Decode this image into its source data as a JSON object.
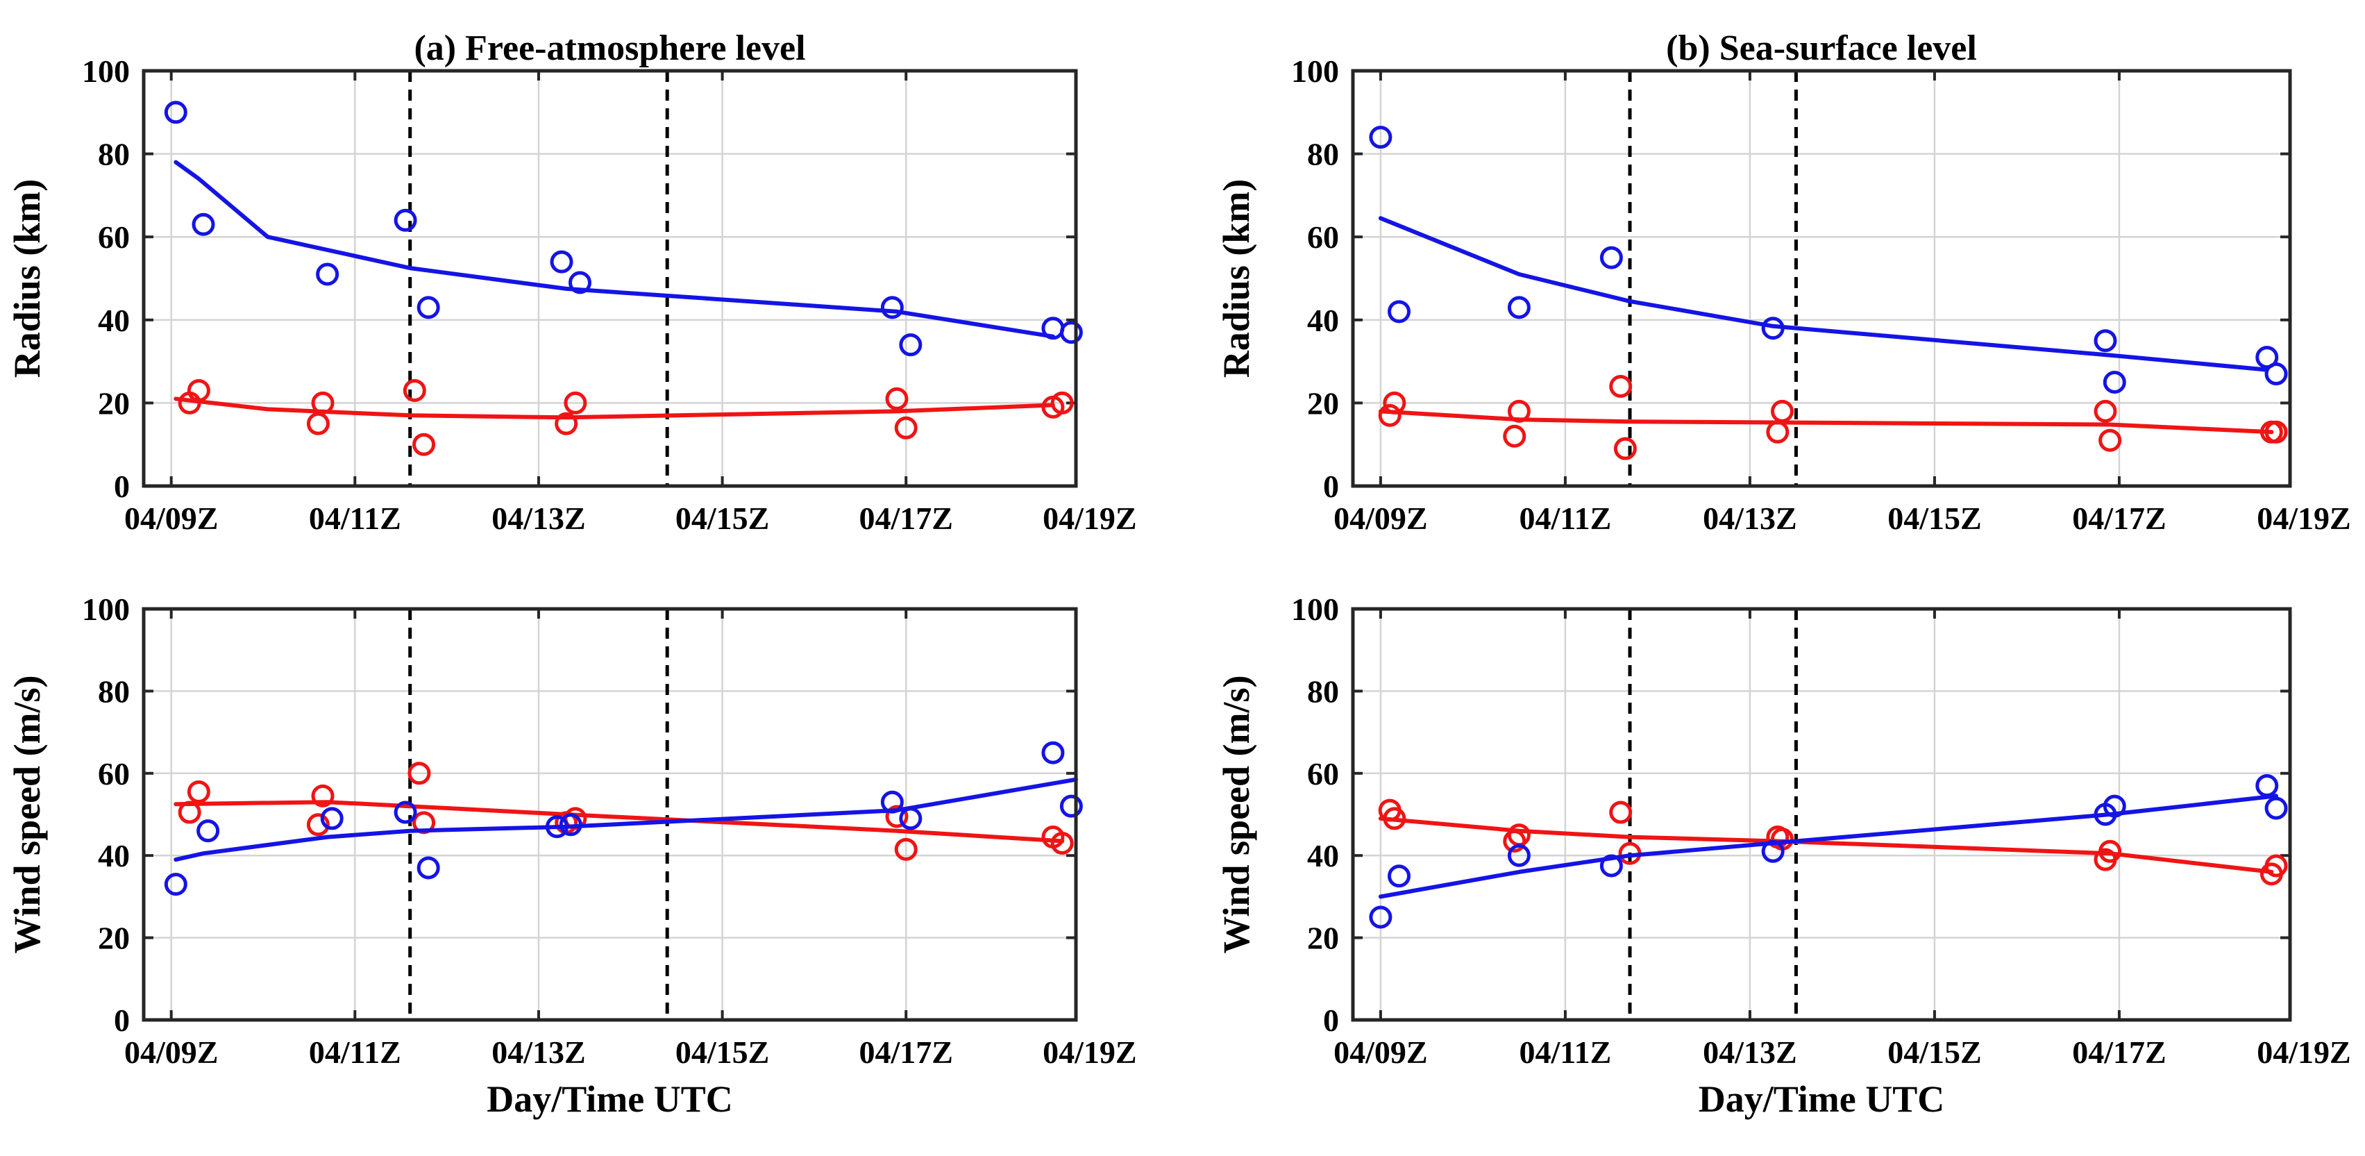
{
  "colors": {
    "blue": "#1414e6",
    "red": "#f01414"
  },
  "chart_data": [
    {
      "type": "line",
      "title": "(a) Free-atmosphere level",
      "xlabel": "",
      "ylabel": "Radius (km)",
      "xlim": [
        8.7,
        18.85
      ],
      "ylim": [
        0,
        100
      ],
      "xticks": [
        9,
        11,
        13,
        15,
        17,
        19
      ],
      "xtick_labels": [
        "04/09Z",
        "04/11Z",
        "04/13Z",
        "04/15Z",
        "04/17Z",
        "04/19Z"
      ],
      "yticks": [
        0,
        20,
        40,
        60,
        80,
        100
      ],
      "ytick_labels": [
        "0",
        "20",
        "40",
        "60",
        "80",
        "100"
      ],
      "vlines": [
        11.6,
        14.4
      ],
      "series": [
        {
          "name": "blue fit",
          "color": "blue",
          "kind": "line",
          "x": [
            9.05,
            9.3,
            10.05,
            11.6,
            13.3,
            16.9,
            18.6
          ],
          "y": [
            78,
            74,
            60,
            52.5,
            47.5,
            42,
            36
          ]
        },
        {
          "name": "blue obs",
          "color": "blue",
          "kind": "points",
          "x": [
            9.05,
            9.35,
            10.7,
            11.55,
            11.8,
            13.25,
            13.45,
            16.85,
            17.05,
            18.6,
            18.8
          ],
          "y": [
            90,
            63,
            51,
            64,
            43,
            54,
            49,
            43,
            34,
            38,
            37
          ]
        },
        {
          "name": "red fit",
          "color": "red",
          "kind": "line",
          "x": [
            9.05,
            10.05,
            11.6,
            13.3,
            16.9,
            18.6
          ],
          "y": [
            21,
            18.5,
            17,
            16.5,
            18,
            19.5
          ]
        },
        {
          "name": "red obs",
          "color": "red",
          "kind": "points",
          "x": [
            9.2,
            9.3,
            10.6,
            10.65,
            11.65,
            11.75,
            13.3,
            13.4,
            16.9,
            17.0,
            18.6,
            18.7
          ],
          "y": [
            20,
            23,
            15,
            20,
            23,
            10,
            15,
            20,
            21,
            14,
            19,
            20
          ]
        }
      ]
    },
    {
      "type": "line",
      "title": "(b) Sea-surface level",
      "xlabel": "",
      "ylabel": "Radius (km)",
      "xlim": [
        8.7,
        18.85
      ],
      "ylim": [
        0,
        100
      ],
      "xticks": [
        9,
        11,
        13,
        15,
        17,
        19
      ],
      "xtick_labels": [
        "04/09Z",
        "04/11Z",
        "04/13Z",
        "04/15Z",
        "04/17Z",
        "04/19Z"
      ],
      "yticks": [
        0,
        20,
        40,
        60,
        80,
        100
      ],
      "ytick_labels": [
        "0",
        "20",
        "40",
        "60",
        "80",
        "100"
      ],
      "vlines": [
        11.7,
        13.5
      ],
      "series": [
        {
          "name": "blue fit",
          "color": "blue",
          "kind": "line",
          "x": [
            9.0,
            10.5,
            11.7,
            13.25,
            16.9,
            18.6
          ],
          "y": [
            64.5,
            51,
            44.5,
            38.5,
            31.5,
            28
          ]
        },
        {
          "name": "blue obs",
          "color": "blue",
          "kind": "points",
          "x": [
            9.0,
            9.2,
            10.5,
            11.5,
            13.25,
            16.85,
            16.95,
            18.6,
            18.7
          ],
          "y": [
            84,
            42,
            43,
            55,
            38,
            35,
            25,
            31,
            27
          ]
        },
        {
          "name": "red fit",
          "color": "red",
          "kind": "line",
          "x": [
            9.0,
            10.5,
            11.7,
            13.3,
            16.9,
            18.65
          ],
          "y": [
            18,
            16,
            15.5,
            15.3,
            14.8,
            13
          ]
        },
        {
          "name": "red obs",
          "color": "red",
          "kind": "points",
          "x": [
            9.1,
            9.15,
            10.45,
            10.5,
            11.6,
            11.65,
            13.3,
            13.35,
            16.85,
            16.9,
            18.65,
            18.7
          ],
          "y": [
            17,
            20,
            12,
            18,
            24,
            9,
            13,
            18,
            18,
            11,
            13,
            13
          ]
        }
      ]
    },
    {
      "type": "line",
      "title": "",
      "xlabel": "Day/Time UTC",
      "ylabel": "Wind speed (m/s)",
      "xlim": [
        8.7,
        18.85
      ],
      "ylim": [
        0,
        100
      ],
      "xticks": [
        9,
        11,
        13,
        15,
        17,
        19
      ],
      "xtick_labels": [
        "04/09Z",
        "04/11Z",
        "04/13Z",
        "04/15Z",
        "04/17Z",
        "04/19Z"
      ],
      "yticks": [
        0,
        20,
        40,
        60,
        80,
        100
      ],
      "ytick_labels": [
        "0",
        "20",
        "40",
        "60",
        "80",
        "100"
      ],
      "vlines": [
        11.6,
        14.4
      ],
      "series": [
        {
          "name": "red fit",
          "color": "red",
          "kind": "line",
          "x": [
            9.05,
            10.7,
            11.6,
            13.3,
            16.9,
            18.7
          ],
          "y": [
            52.5,
            53,
            52,
            50,
            46,
            43.5
          ]
        },
        {
          "name": "red obs",
          "color": "red",
          "kind": "points",
          "x": [
            9.2,
            9.3,
            10.6,
            10.65,
            11.7,
            11.75,
            13.3,
            13.4,
            16.9,
            17.0,
            18.6,
            18.7
          ],
          "y": [
            50.5,
            55.5,
            47.5,
            54.5,
            60,
            48,
            48,
            49,
            49.5,
            41.5,
            44.5,
            43
          ]
        },
        {
          "name": "blue fit",
          "color": "blue",
          "kind": "line",
          "x": [
            9.05,
            9.35,
            10.7,
            11.6,
            13.3,
            16.9,
            18.85
          ],
          "y": [
            39,
            40.5,
            44.5,
            46,
            47,
            51,
            58.5
          ]
        },
        {
          "name": "blue obs",
          "color": "blue",
          "kind": "points",
          "x": [
            9.05,
            9.4,
            10.75,
            11.55,
            11.8,
            13.2,
            13.35,
            16.85,
            17.05,
            18.6,
            18.8
          ],
          "y": [
            33,
            46,
            49,
            50.5,
            37,
            47,
            47.5,
            53,
            49,
            65,
            52
          ]
        }
      ]
    },
    {
      "type": "line",
      "title": "",
      "xlabel": "Day/Time UTC",
      "ylabel": "Wind speed (m/s)",
      "xlim": [
        8.7,
        18.85
      ],
      "ylim": [
        0,
        100
      ],
      "xticks": [
        9,
        11,
        13,
        15,
        17,
        19
      ],
      "xtick_labels": [
        "04/09Z",
        "04/11Z",
        "04/13Z",
        "04/15Z",
        "04/17Z",
        "04/19Z"
      ],
      "yticks": [
        0,
        20,
        40,
        60,
        80,
        100
      ],
      "ytick_labels": [
        "0",
        "20",
        "40",
        "60",
        "80",
        "100"
      ],
      "vlines": [
        11.7,
        13.5
      ],
      "series": [
        {
          "name": "red fit",
          "color": "red",
          "kind": "line",
          "x": [
            9.0,
            10.5,
            11.7,
            13.3,
            16.9,
            18.65
          ],
          "y": [
            49,
            46,
            44.5,
            43.5,
            40.5,
            36
          ]
        },
        {
          "name": "red obs",
          "color": "red",
          "kind": "points",
          "x": [
            9.1,
            9.15,
            10.45,
            10.5,
            11.6,
            11.7,
            13.3,
            13.35,
            16.85,
            16.9,
            18.65,
            18.7
          ],
          "y": [
            51,
            49,
            43.5,
            45,
            50.5,
            40.5,
            44.5,
            44,
            39,
            41,
            35.5,
            37.5
          ]
        },
        {
          "name": "blue fit",
          "color": "blue",
          "kind": "line",
          "x": [
            9.0,
            10.5,
            11.7,
            13.25,
            16.9,
            18.7
          ],
          "y": [
            30,
            36,
            40,
            43,
            50,
            54.5
          ]
        },
        {
          "name": "blue obs",
          "color": "blue",
          "kind": "points",
          "x": [
            9.0,
            9.2,
            10.5,
            11.5,
            13.25,
            16.85,
            16.95,
            18.6,
            18.7
          ],
          "y": [
            25,
            35,
            40,
            37.5,
            41,
            50,
            52,
            57,
            51.5
          ]
        }
      ]
    }
  ]
}
